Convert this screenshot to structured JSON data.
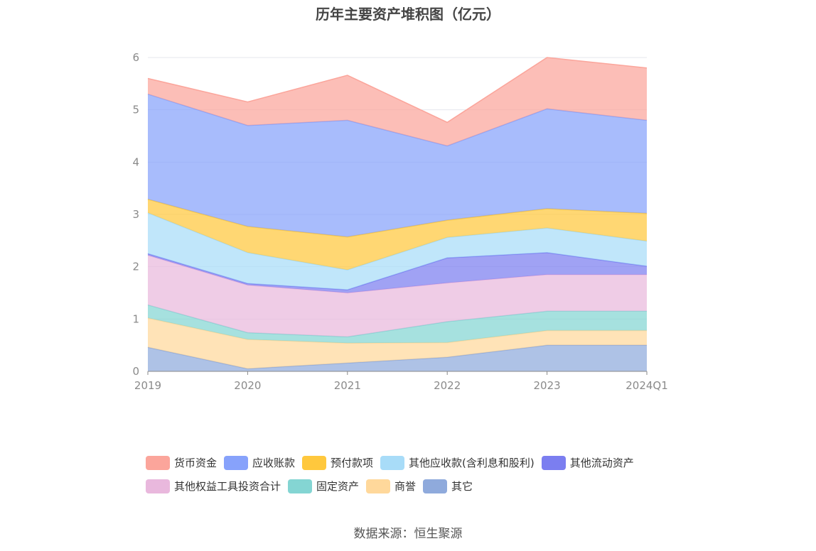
{
  "chart_data": {
    "type": "area",
    "stacked": true,
    "title": "历年主要资产堆积图（亿元）",
    "categories": [
      "2019",
      "2020",
      "2021",
      "2022",
      "2023",
      "2024Q1"
    ],
    "ylim": [
      0,
      6
    ],
    "yticks": [
      "0",
      "1",
      "2",
      "3",
      "4",
      "5",
      "6"
    ],
    "grid": true,
    "legend_position": "bottom",
    "series": [
      {
        "name": "其它",
        "color": "#8faadc",
        "values": [
          0.46,
          0.05,
          0.16,
          0.27,
          0.5,
          0.5
        ]
      },
      {
        "name": "商誉",
        "color": "#ffd89b",
        "values": [
          0.56,
          0.56,
          0.38,
          0.28,
          0.28,
          0.28
        ]
      },
      {
        "name": "固定资产",
        "color": "#84d5d3",
        "values": [
          0.25,
          0.13,
          0.12,
          0.4,
          0.37,
          0.37
        ]
      },
      {
        "name": "其他权益工具投资合计",
        "color": "#e9b8dd",
        "values": [
          0.95,
          0.91,
          0.84,
          0.74,
          0.7,
          0.7
        ]
      },
      {
        "name": "其他流动资产",
        "color": "#7b7ef0",
        "values": [
          0.03,
          0.03,
          0.06,
          0.48,
          0.42,
          0.16
        ]
      },
      {
        "name": "其他应收款(含利息和股利)",
        "color": "#a8dcf8",
        "values": [
          0.78,
          0.59,
          0.38,
          0.39,
          0.47,
          0.48
        ]
      },
      {
        "name": "预付款项",
        "color": "#ffc83d",
        "values": [
          0.26,
          0.5,
          0.63,
          0.33,
          0.37,
          0.53
        ]
      },
      {
        "name": "应收账款",
        "color": "#87a2fb",
        "values": [
          2.01,
          1.93,
          2.23,
          1.42,
          1.91,
          1.78
        ]
      },
      {
        "name": "货币资金",
        "color": "#fba59b",
        "values": [
          0.3,
          0.45,
          0.86,
          0.45,
          0.98,
          1.0
        ]
      }
    ],
    "legend_order": [
      "货币资金",
      "应收账款",
      "预付款项",
      "其他应收款(含利息和股利)",
      "其他流动资产",
      "其他权益工具投资合计",
      "固定资产",
      "商誉",
      "其它"
    ]
  },
  "source": "数据来源：恒生聚源"
}
